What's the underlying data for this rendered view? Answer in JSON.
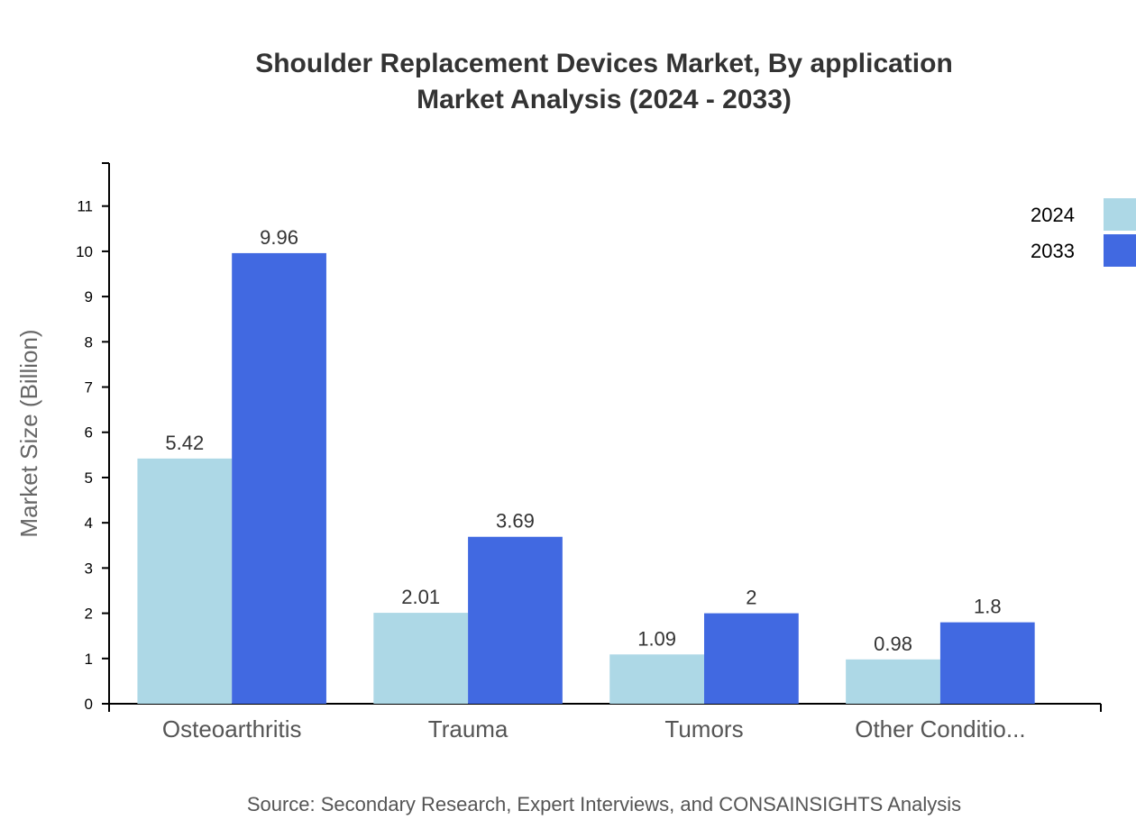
{
  "chart_data": {
    "type": "bar",
    "title": [
      "Shoulder Replacement Devices Market, By application",
      "Market Analysis (2024 - 2033)"
    ],
    "xlabel": "",
    "ylabel": "Market Size (Billion)",
    "categories": [
      "Osteoarthritis",
      "Trauma",
      "Tumors",
      "Other Conditio..."
    ],
    "series": [
      {
        "name": "2024",
        "color": "#add8e6",
        "values": [
          5.42,
          2.01,
          1.09,
          0.98
        ]
      },
      {
        "name": "2033",
        "color": "#4169e1",
        "values": [
          9.96,
          3.69,
          2,
          1.8
        ]
      }
    ],
    "ylim": [
      0,
      11.95
    ],
    "yticks": [
      0,
      1,
      2,
      3,
      4,
      5,
      6,
      7,
      8,
      9,
      10,
      11
    ],
    "grid": false,
    "legend": "top-right",
    "source": "Source: Secondary Research, Expert Interviews, and CONSAINSIGHTS Analysis"
  }
}
